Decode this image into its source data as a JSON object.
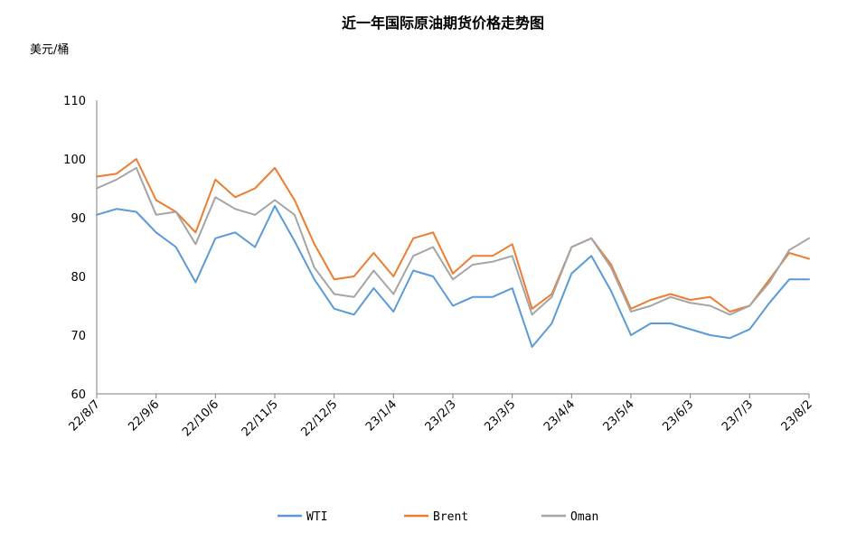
{
  "chart_data": {
    "type": "line",
    "title": "近一年国际原油期货价格走势图",
    "ylabel": "美元/桶",
    "xlabel": "",
    "ylim": [
      60,
      110
    ],
    "yticks": [
      60,
      70,
      80,
      90,
      100,
      110
    ],
    "grid": false,
    "legend_position": "bottom",
    "x": [
      "22/8/7",
      "22/8/17",
      "22/8/27",
      "22/9/6",
      "22/9/16",
      "22/9/26",
      "22/10/6",
      "22/10/16",
      "22/10/26",
      "22/11/5",
      "22/11/15",
      "22/11/25",
      "22/12/5",
      "22/12/15",
      "22/12/25",
      "23/1/4",
      "23/1/14",
      "23/1/24",
      "23/2/3",
      "23/2/13",
      "23/2/23",
      "23/3/5",
      "23/3/15",
      "23/3/25",
      "23/4/4",
      "23/4/14",
      "23/4/24",
      "23/5/4",
      "23/5/14",
      "23/5/24",
      "23/6/3",
      "23/6/13",
      "23/6/23",
      "23/7/3",
      "23/7/13",
      "23/7/23",
      "23/8/2"
    ],
    "x_tick_labels": [
      "22/8/7",
      "22/9/6",
      "22/10/6",
      "22/11/5",
      "22/12/5",
      "23/1/4",
      "23/2/3",
      "23/3/5",
      "23/4/4",
      "23/5/4",
      "23/6/3",
      "23/7/3",
      "23/8/2"
    ],
    "series": [
      {
        "name": "WTI",
        "color": "#5b9bd5",
        "values": [
          90.5,
          91.5,
          91.0,
          87.5,
          85.0,
          79.0,
          86.5,
          87.5,
          85.0,
          92.0,
          86.0,
          79.5,
          74.5,
          73.5,
          78.0,
          74.0,
          81.0,
          80.0,
          75.0,
          76.5,
          76.5,
          78.0,
          68.0,
          72.0,
          80.5,
          83.5,
          77.5,
          70.0,
          72.0,
          72.0,
          71.0,
          70.0,
          69.5,
          71.0,
          75.5,
          79.5,
          79.5
        ]
      },
      {
        "name": "Brent",
        "color": "#ed7d31",
        "values": [
          97.0,
          97.5,
          100.0,
          93.0,
          91.0,
          87.5,
          96.5,
          93.5,
          95.0,
          98.5,
          93.0,
          85.5,
          79.5,
          80.0,
          84.0,
          80.0,
          86.5,
          87.5,
          80.5,
          83.5,
          83.5,
          85.5,
          74.5,
          77.0,
          85.0,
          86.5,
          82.0,
          74.5,
          76.0,
          77.0,
          76.0,
          76.5,
          74.0,
          75.0,
          79.5,
          84.0,
          83.0
        ]
      },
      {
        "name": "Oman",
        "color": "#a5a5a5",
        "values": [
          95.0,
          96.5,
          98.5,
          90.5,
          91.0,
          85.5,
          93.5,
          91.5,
          90.5,
          93.0,
          90.5,
          81.5,
          77.0,
          76.5,
          81.0,
          77.0,
          83.5,
          85.0,
          79.5,
          82.0,
          82.5,
          83.5,
          73.5,
          76.5,
          85.0,
          86.5,
          81.5,
          74.0,
          75.0,
          76.5,
          75.5,
          75.0,
          73.5,
          75.0,
          79.0,
          84.5,
          86.5
        ]
      }
    ]
  }
}
